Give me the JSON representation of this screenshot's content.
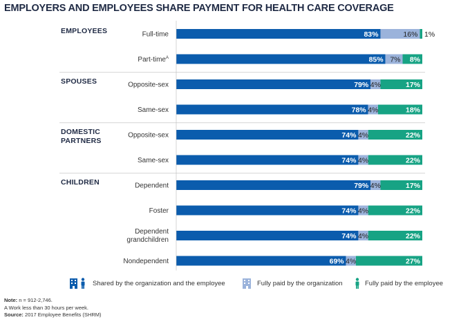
{
  "title": "EMPLOYERS AND EMPLOYEES SHARE PAYMENT FOR HEALTH CARE COVERAGE",
  "colors": {
    "shared": "#0b5cad",
    "org": "#9bb3db",
    "employee": "#17a384",
    "heading": "#1f2a44"
  },
  "chart_data": {
    "type": "bar",
    "orientation": "horizontal",
    "stacked": true,
    "xlim": [
      0,
      100
    ],
    "groups": [
      {
        "name": "EMPLOYEES",
        "rows": [
          {
            "label": "Full-time",
            "sup": "",
            "shared": 83,
            "org": 16,
            "employee": 1
          },
          {
            "label": "Part-time",
            "sup": "A",
            "shared": 85,
            "org": 7,
            "employee": 8
          }
        ]
      },
      {
        "name": "SPOUSES",
        "rows": [
          {
            "label": "Opposite-sex",
            "sup": "",
            "shared": 79,
            "org": 4,
            "employee": 17
          },
          {
            "label": "Same-sex",
            "sup": "",
            "shared": 78,
            "org": 4,
            "employee": 18
          }
        ]
      },
      {
        "name": "DOMESTIC\nPARTNERS",
        "rows": [
          {
            "label": "Opposite-sex",
            "sup": "",
            "shared": 74,
            "org": 4,
            "employee": 22
          },
          {
            "label": "Same-sex",
            "sup": "",
            "shared": 74,
            "org": 4,
            "employee": 22
          }
        ]
      },
      {
        "name": "CHILDREN",
        "rows": [
          {
            "label": "Dependent",
            "sup": "",
            "shared": 79,
            "org": 4,
            "employee": 17
          },
          {
            "label": "Foster",
            "sup": "",
            "shared": 74,
            "org": 4,
            "employee": 22
          },
          {
            "label": "Dependent\ngrandchildren",
            "sup": "",
            "shared": 74,
            "org": 4,
            "employee": 22
          },
          {
            "label": "Nondependent",
            "sup": "",
            "shared": 69,
            "org": 4,
            "employee": 27
          }
        ]
      }
    ],
    "series": [
      {
        "key": "shared",
        "name": "Shared by the organization and the employee"
      },
      {
        "key": "org",
        "name": "Fully paid by the organization"
      },
      {
        "key": "employee",
        "name": "Fully paid by the employee"
      }
    ]
  },
  "notes": {
    "note_label": "Note:",
    "note_text": " n = 912-2,746.",
    "footnote": "A Work less than 30 hours per week.",
    "source_label": "Source:",
    "source_text": " 2017 Employee Benefits (SHRM)"
  }
}
